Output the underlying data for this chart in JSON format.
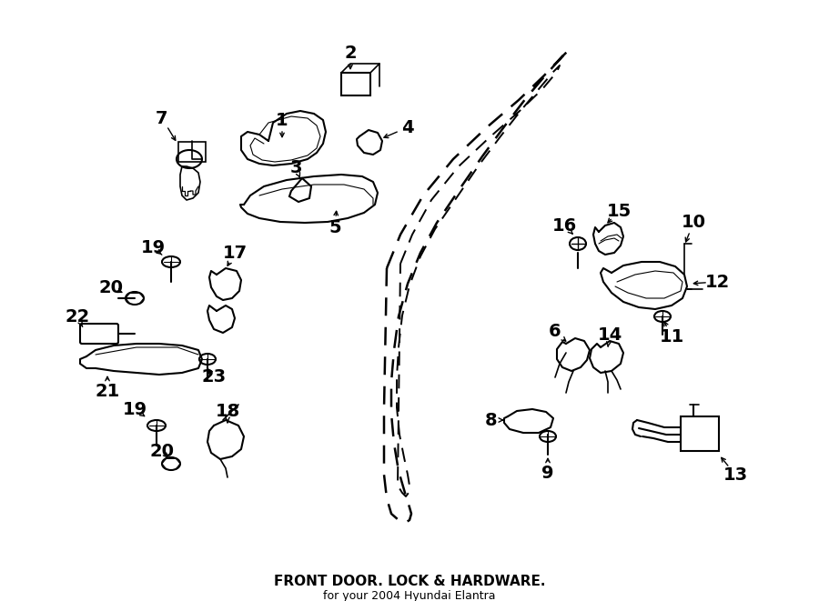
{
  "title": "FRONT DOOR. LOCK & HARDWARE.",
  "subtitle": "for your 2004 Hyundai Elantra",
  "bg_color": "#ffffff",
  "line_color": "#000000",
  "figsize": [
    9.0,
    6.61
  ],
  "dpi": 100
}
